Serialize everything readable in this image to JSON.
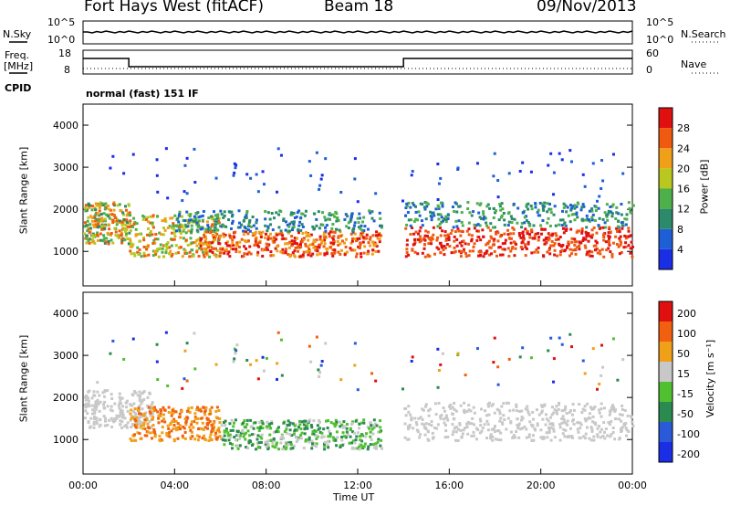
{
  "header": {
    "radar_title": "Fort Hays West (fitACF)",
    "beam": "Beam 18",
    "date": "09/Nov/2013"
  },
  "small_panels": {
    "nsky_label": "N.Sky",
    "nsky_ticks": [
      "10^5",
      "10^0"
    ],
    "nsearch_label": "N.Search",
    "nsearch_ticks": [
      "10^5",
      "10^0"
    ],
    "freq_label": "Freq.",
    "freq_unit": "[MHz]",
    "freq_ticks": [
      "18",
      "8"
    ],
    "nave_label": "Nave",
    "nave_ticks": [
      "60",
      "0"
    ],
    "cpid_label": "CPID",
    "cpid_value": "normal (fast) 151 IF"
  },
  "chart_data": [
    {
      "type": "heatmap",
      "name": "power",
      "ylabel": "Slant Range [km]",
      "yticks": [
        "1000",
        "2000",
        "3000",
        "4000"
      ],
      "ylim": [
        180,
        4500
      ],
      "xlim": [
        0,
        24
      ],
      "colorbar_label": "Power [dB]",
      "colorbar_ticks": [
        "4",
        "8",
        "12",
        "16",
        "20",
        "24",
        "28"
      ],
      "colorbar_colors": [
        "#1a2ee6",
        "#1f5fd6",
        "#2a8a6a",
        "#4db04a",
        "#b8c820",
        "#f0a018",
        "#f05a10",
        "#e01010"
      ]
    },
    {
      "type": "heatmap",
      "name": "velocity",
      "ylabel": "Slant Range [km]",
      "yticks": [
        "1000",
        "2000",
        "3000",
        "4000"
      ],
      "ylim": [
        180,
        4500
      ],
      "xlim": [
        0,
        24
      ],
      "colorbar_label": "Velocity [m s⁻¹]",
      "colorbar_ticks": [
        "200",
        "100",
        "50",
        "15",
        "-15",
        "-50",
        "-100",
        "-200"
      ],
      "colorbar_colors": [
        "#1a2ee6",
        "#2a5ad8",
        "#2a8a50",
        "#50c030",
        "#c8c8c8",
        "#f0a018",
        "#f06010",
        "#e01010"
      ]
    }
  ],
  "xaxis": {
    "ticks": [
      "00:00",
      "04:00",
      "08:00",
      "12:00",
      "16:00",
      "20:00",
      "00:00"
    ],
    "label": "Time UT"
  }
}
